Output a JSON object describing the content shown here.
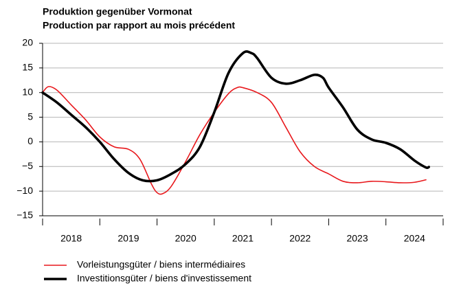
{
  "chart_data": {
    "type": "line",
    "title": "Produktion gegenüber Vormonat",
    "subtitle": "Production par rapport au mois précédent",
    "xlim": [
      2018,
      2025
    ],
    "xticks": [
      {
        "value": 2018,
        "label": "2018"
      },
      {
        "value": 2019,
        "label": "2019"
      },
      {
        "value": 2020,
        "label": "2020"
      },
      {
        "value": 2021,
        "label": "2021"
      },
      {
        "value": 2022,
        "label": "2022"
      },
      {
        "value": 2023,
        "label": "2023"
      },
      {
        "value": 2024,
        "label": "2024"
      }
    ],
    "ylim": [
      -15,
      20
    ],
    "yticks": [
      {
        "value": -15,
        "label": "−15"
      },
      {
        "value": -10,
        "label": "−10"
      },
      {
        "value": -5,
        "label": "−5"
      },
      0,
      5,
      10,
      15,
      20
    ],
    "grid": true,
    "legend": "bottom",
    "series": [
      {
        "name": "Vorleistungsgüter / biens intermédiaires",
        "color": "#e8171b",
        "width": 1.6,
        "x": [
          2018.0,
          2018.1,
          2018.25,
          2018.5,
          2018.75,
          2019.0,
          2019.25,
          2019.5,
          2019.7,
          2019.9,
          2020.0,
          2020.1,
          2020.25,
          2020.5,
          2020.75,
          2021.0,
          2021.25,
          2021.4,
          2021.5,
          2021.75,
          2022.0,
          2022.25,
          2022.5,
          2022.75,
          2023.0,
          2023.25,
          2023.5,
          2023.75,
          2024.0,
          2024.25,
          2024.5,
          2024.7
        ],
        "values": [
          10,
          11.2,
          10.5,
          7.5,
          4.5,
          1,
          -1,
          -1.5,
          -3.5,
          -8.5,
          -10.3,
          -10.5,
          -9,
          -4,
          1.5,
          6,
          9.8,
          11,
          11,
          10,
          8,
          3,
          -2,
          -5,
          -6.5,
          -8,
          -8.3,
          -8,
          -8.1,
          -8.3,
          -8.2,
          -7.7
        ]
      },
      {
        "name": "Investitionsgüter / biens d'investissement",
        "color": "#000000",
        "width": 3.6,
        "x": [
          2018.0,
          2018.25,
          2018.5,
          2018.75,
          2019.0,
          2019.25,
          2019.5,
          2019.75,
          2020.0,
          2020.25,
          2020.5,
          2020.75,
          2021.0,
          2021.25,
          2021.5,
          2021.65,
          2021.75,
          2022.0,
          2022.25,
          2022.5,
          2022.75,
          2022.9,
          2023.0,
          2023.25,
          2023.5,
          2023.75,
          2024.0,
          2024.25,
          2024.5,
          2024.7,
          2024.75
        ],
        "values": [
          10,
          8,
          5.5,
          3,
          0,
          -3.5,
          -6.3,
          -7.8,
          -7.8,
          -6.5,
          -4.5,
          -1,
          6,
          14,
          18,
          18,
          17,
          13,
          11.8,
          12.5,
          13.6,
          13,
          11,
          7,
          2.5,
          0.5,
          -0.2,
          -1.5,
          -3.8,
          -5.2,
          -5.1
        ]
      }
    ]
  }
}
